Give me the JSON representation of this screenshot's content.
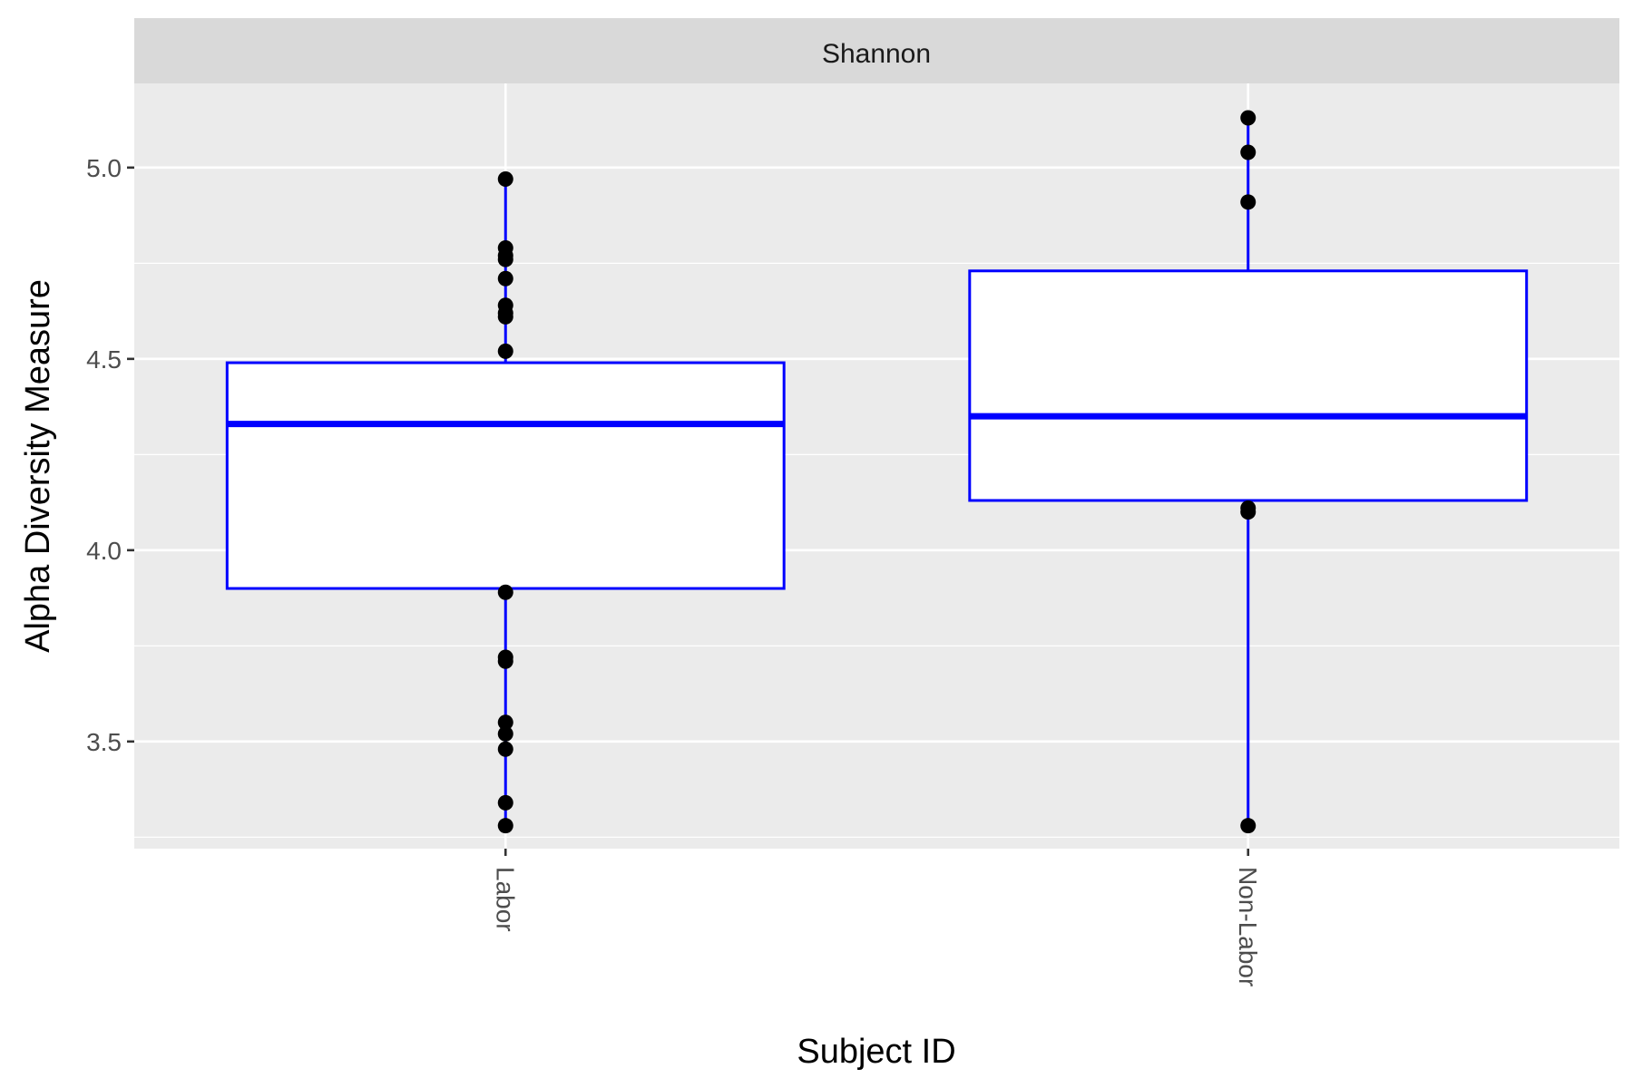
{
  "chart_data": {
    "type": "box",
    "facet": "Shannon",
    "xlabel": "Subject ID",
    "ylabel": "Alpha Diversity Measure",
    "categories": [
      "Labor",
      "Non-Labor"
    ],
    "ylim": [
      3.22,
      5.22
    ],
    "yticks": [
      3.5,
      4.0,
      4.5,
      5.0
    ],
    "ytick_labels": [
      "3.5",
      "4.0",
      "4.5",
      "5.0"
    ],
    "grid": true,
    "series": [
      {
        "category": "Labor",
        "q1": 3.9,
        "median": 4.33,
        "q3": 4.49,
        "whisker_low": 3.28,
        "whisker_high": 4.97,
        "points": [
          4.97,
          4.79,
          4.77,
          4.76,
          4.71,
          4.64,
          4.62,
          4.61,
          4.52,
          3.89,
          3.72,
          3.71,
          3.55,
          3.52,
          3.48,
          3.34,
          3.28
        ]
      },
      {
        "category": "Non-Labor",
        "q1": 4.13,
        "median": 4.35,
        "q3": 4.73,
        "whisker_low": 3.28,
        "whisker_high": 5.13,
        "points": [
          5.13,
          5.04,
          4.91,
          4.11,
          4.1,
          3.28
        ]
      }
    ],
    "colors": {
      "panel_bg": "#ebebeb",
      "strip_bg": "#d9d9d9",
      "grid": "#ffffff",
      "box_line": "#0000ff",
      "box_fill": "#ffffff",
      "point": "#000000"
    }
  }
}
